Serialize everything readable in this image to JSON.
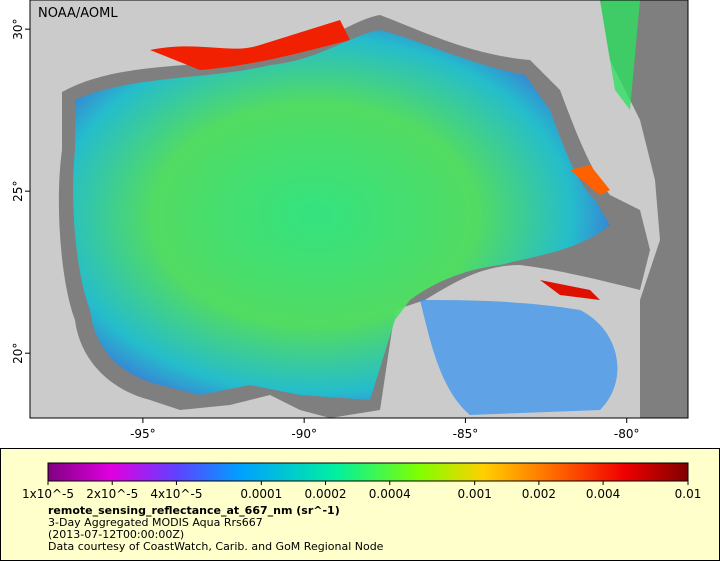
{
  "map": {
    "credit": "NOAA/AOML",
    "xlim": [
      -98.5,
      -78.1
    ],
    "ylim": [
      18.0,
      30.9
    ],
    "xticks": [
      {
        "value": -95,
        "label": "-95°"
      },
      {
        "value": -90,
        "label": "-90°"
      },
      {
        "value": -85,
        "label": "-85°"
      },
      {
        "value": -80,
        "label": "-80°"
      }
    ],
    "yticks": [
      {
        "value": 20,
        "label": "20°"
      },
      {
        "value": 25,
        "label": "25°"
      },
      {
        "value": 30,
        "label": "30°"
      }
    ]
  },
  "legend": {
    "lim": [
      1e-05,
      0.01
    ],
    "log": true,
    "ticks": [
      {
        "value": 1e-05,
        "label": "1x10^-5"
      },
      {
        "value": 2e-05,
        "label": "2x10^-5"
      },
      {
        "value": 4e-05,
        "label": "4x10^-5"
      },
      0.0001,
      0.0002,
      0.0004,
      0.001,
      0.002,
      0.004,
      0.01
    ],
    "variable": "remote_sensing_reflectance_at_667_nm (sr^-1)",
    "lines": [
      "3-Day Aggregated MODIS Aqua Rrs667",
      "(2013-07-12T00:00:00Z)",
      "Data courtesy of CoastWatch, Carib. and GoM Regional Node"
    ]
  }
}
